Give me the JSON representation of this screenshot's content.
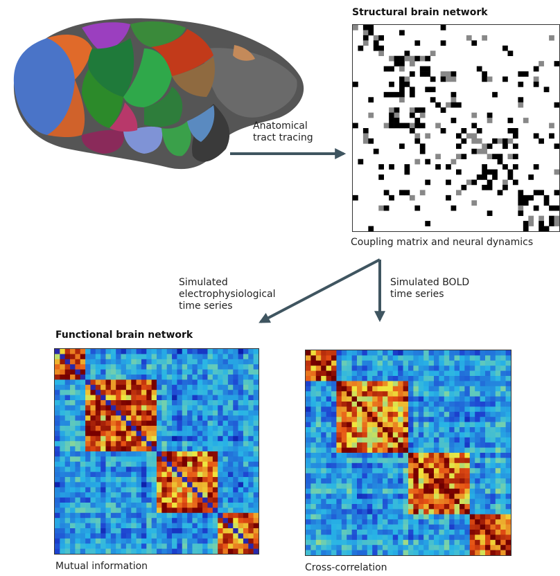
{
  "structural": {
    "title": "Structural brain network",
    "caption": "Coupling matrix and neural dynamics"
  },
  "functional": {
    "title": "Functional brain network",
    "left_caption": "Mutual information",
    "right_caption": "Cross-correlation"
  },
  "arrows": {
    "tracing": [
      "Anatomical",
      "tract tracing"
    ],
    "electro": [
      "Simulated",
      "electrophysiological",
      "time series"
    ],
    "bold": [
      "Simulated BOLD",
      "time series"
    ]
  },
  "colors": {
    "arrow": "#3f5560",
    "brain_base": "#4a4a4a",
    "heat_low": "#2b3fa8",
    "heat_high": "#7a0000"
  },
  "icons": {
    "brain": "brain-surface-illustration"
  }
}
